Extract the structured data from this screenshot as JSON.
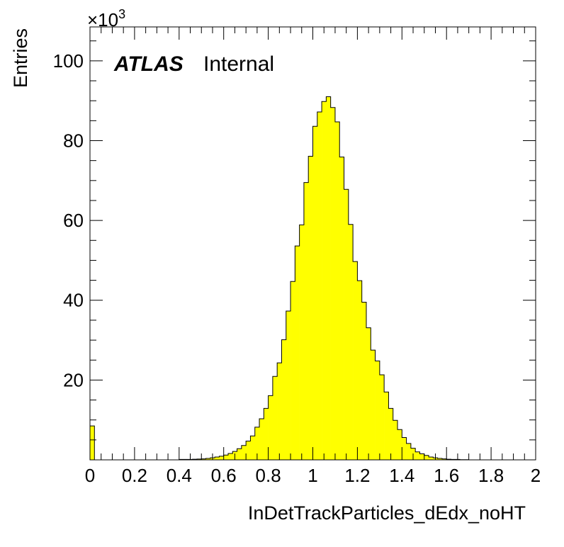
{
  "chart_data": {
    "type": "bar",
    "histogram_style": "step-filled",
    "fill_color": "#ffff00",
    "line_color": "#000000",
    "xlabel": "InDetTrackParticles_dEdx_noHT",
    "ylabel": "Entries",
    "y_multiplier_base": "×10",
    "y_multiplier_exp": "3",
    "label_bold": "ATLAS",
    "label_text": "Internal",
    "xlim": [
      0,
      2
    ],
    "ylim": [
      0,
      108.5
    ],
    "x_ticks": [
      "0",
      "0.2",
      "0.4",
      "0.6",
      "0.8",
      "1",
      "1.2",
      "1.4",
      "1.6",
      "1.8",
      "2"
    ],
    "x_tick_values": [
      0,
      0.2,
      0.4,
      0.6,
      0.8,
      1.0,
      1.2,
      1.4,
      1.6,
      1.8,
      2.0
    ],
    "y_ticks": [
      "20",
      "40",
      "60",
      "80",
      "100"
    ],
    "y_tick_values": [
      20,
      40,
      60,
      80,
      100
    ],
    "bin_width": 0.02,
    "bin_edges_start": 0,
    "values": [
      8.5,
      0,
      0,
      0,
      0,
      0,
      0,
      0,
      0,
      0,
      0,
      0,
      0,
      0,
      0,
      0,
      0,
      0,
      0,
      0,
      0.1,
      0.1,
      0.1,
      0.15,
      0.2,
      0.25,
      0.35,
      0.5,
      0.7,
      0.9,
      1.2,
      1.6,
      2.1,
      2.8,
      3.6,
      4.7,
      6.0,
      8.2,
      10.3,
      12.9,
      16.1,
      20.9,
      24.3,
      30.1,
      37.3,
      44.7,
      53.6,
      58.9,
      69.5,
      76.1,
      83.6,
      87.2,
      89.8,
      91.0,
      88.3,
      84.7,
      75.9,
      67.8,
      59.0,
      49.7,
      44.9,
      39.5,
      33.1,
      27.5,
      24.8,
      21.3,
      17.0,
      12.9,
      9.9,
      7.6,
      5.6,
      4.1,
      2.9,
      2.0,
      1.5,
      1.1,
      0.7,
      0.5,
      0.35,
      0.25,
      0.15,
      0.1,
      0.1,
      0.05,
      0.05,
      0,
      0,
      0,
      0,
      0,
      0,
      0,
      0,
      0,
      0,
      0,
      0,
      0,
      0,
      0
    ]
  }
}
